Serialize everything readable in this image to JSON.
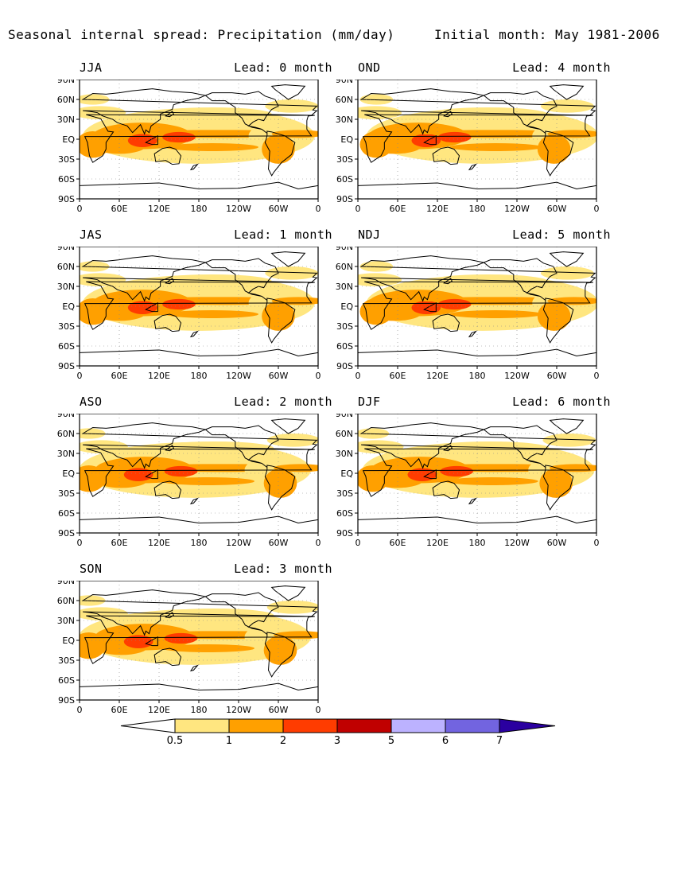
{
  "title": {
    "left": "Seasonal internal spread: Precipitation (mm/day)",
    "right": "Initial month: May 1981-2006"
  },
  "panels": [
    {
      "season": "JJA",
      "lead": "Lead: 0 month"
    },
    {
      "season": "OND",
      "lead": "Lead: 4 month"
    },
    {
      "season": "JAS",
      "lead": "Lead: 1 month"
    },
    {
      "season": "NDJ",
      "lead": "Lead: 5 month"
    },
    {
      "season": "ASO",
      "lead": "Lead: 2 month"
    },
    {
      "season": "DJF",
      "lead": "Lead: 6 month"
    },
    {
      "season": "SON",
      "lead": "Lead: 3 month"
    }
  ],
  "axes": {
    "lat_labels": [
      "90N",
      "60N",
      "30N",
      "EQ",
      "30S",
      "60S",
      "90S"
    ],
    "lon_labels": [
      "0",
      "60E",
      "120E",
      "180",
      "120W",
      "60W",
      "0"
    ]
  },
  "colorbar": {
    "labels": [
      "0.5",
      "1",
      "2",
      "3",
      "5",
      "6",
      "7"
    ],
    "colors": [
      "#ffffff",
      "#ffe680",
      "#ffa000",
      "#ff3c00",
      "#c00000",
      "#bcb2ff",
      "#7264e0",
      "#2a00a0"
    ]
  }
}
